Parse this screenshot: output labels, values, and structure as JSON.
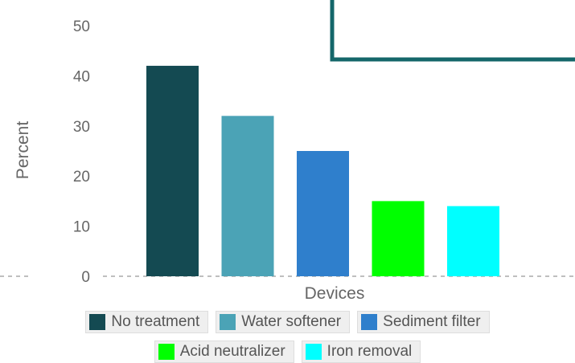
{
  "chart_data": {
    "type": "bar",
    "xlabel": "Devices",
    "ylabel": "Percent",
    "ylim": [
      0,
      50
    ],
    "yticks": [
      0,
      10,
      20,
      30,
      40,
      50
    ],
    "grid": false,
    "legend_position": "bottom",
    "series": [
      {
        "name": "No treatment",
        "value": 42,
        "color": "#144a52"
      },
      {
        "name": "Water softener",
        "value": 32,
        "color": "#4ba3b6"
      },
      {
        "name": "Sediment filter",
        "value": 25,
        "color": "#2f7fcc"
      },
      {
        "name": "Acid neutralizer",
        "value": 15,
        "color": "#00ff00"
      },
      {
        "name": "Iron removal",
        "value": 14,
        "color": "#00ffff"
      }
    ]
  },
  "tick_labels": [
    "0",
    "10",
    "20",
    "30",
    "40",
    "50"
  ]
}
